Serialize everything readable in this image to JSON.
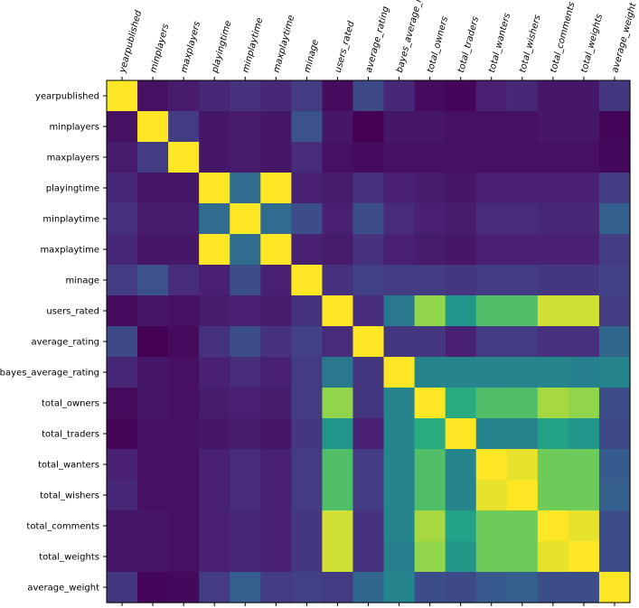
{
  "chart_data": {
    "type": "heatmap",
    "title": "",
    "xlabel": "",
    "ylabel": "",
    "colormap": "viridis",
    "value_range": [
      0,
      1
    ],
    "row_labels": [
      "yearpublished",
      "minplayers",
      "maxplayers",
      "playingtime",
      "minplaytime",
      "maxplaytime",
      "minage",
      "users_rated",
      "average_rating",
      "bayes_average_rating",
      "total_owners",
      "total_traders",
      "total_wanters",
      "total_wishers",
      "total_comments",
      "total_weights",
      "average_weight"
    ],
    "col_labels": [
      "yearpublished",
      "minplayers",
      "maxplayers",
      "playingtime",
      "minplaytime",
      "maxplaytime",
      "minage",
      "users_rated",
      "average_rating",
      "bayes_average_rating",
      "total_owners",
      "total_traders",
      "total_wanters",
      "total_wishers",
      "total_comments",
      "total_weights",
      "average_weight"
    ],
    "values": [
      [
        1.0,
        0.06,
        0.1,
        0.14,
        0.18,
        0.14,
        0.22,
        0.04,
        0.28,
        0.14,
        0.04,
        0.02,
        0.12,
        0.14,
        0.08,
        0.08,
        0.2
      ],
      [
        0.06,
        1.0,
        0.22,
        0.08,
        0.1,
        0.08,
        0.32,
        0.08,
        0.0,
        0.08,
        0.08,
        0.06,
        0.06,
        0.06,
        0.08,
        0.08,
        0.02
      ],
      [
        0.1,
        0.22,
        1.0,
        0.08,
        0.1,
        0.08,
        0.16,
        0.06,
        0.04,
        0.06,
        0.06,
        0.06,
        0.06,
        0.06,
        0.06,
        0.06,
        0.03
      ],
      [
        0.14,
        0.08,
        0.08,
        1.0,
        0.44,
        1.0,
        0.12,
        0.1,
        0.18,
        0.12,
        0.1,
        0.08,
        0.12,
        0.12,
        0.12,
        0.12,
        0.22
      ],
      [
        0.18,
        0.1,
        0.1,
        0.44,
        1.0,
        0.44,
        0.3,
        0.12,
        0.3,
        0.16,
        0.12,
        0.1,
        0.16,
        0.16,
        0.14,
        0.14,
        0.38
      ],
      [
        0.14,
        0.08,
        0.08,
        1.0,
        0.44,
        1.0,
        0.12,
        0.1,
        0.18,
        0.12,
        0.1,
        0.08,
        0.12,
        0.12,
        0.12,
        0.12,
        0.22
      ],
      [
        0.22,
        0.32,
        0.16,
        0.12,
        0.3,
        0.12,
        1.0,
        0.18,
        0.24,
        0.22,
        0.22,
        0.2,
        0.22,
        0.22,
        0.2,
        0.2,
        0.24
      ],
      [
        0.04,
        0.08,
        0.06,
        0.1,
        0.12,
        0.1,
        0.18,
        1.0,
        0.16,
        0.5,
        0.9,
        0.66,
        0.82,
        0.82,
        0.96,
        0.96,
        0.22
      ],
      [
        0.28,
        0.0,
        0.04,
        0.18,
        0.3,
        0.18,
        0.24,
        0.16,
        1.0,
        0.2,
        0.2,
        0.12,
        0.22,
        0.22,
        0.18,
        0.18,
        0.42
      ],
      [
        0.14,
        0.08,
        0.06,
        0.12,
        0.16,
        0.12,
        0.22,
        0.5,
        0.2,
        1.0,
        0.56,
        0.56,
        0.56,
        0.56,
        0.56,
        0.54,
        0.56
      ],
      [
        0.04,
        0.08,
        0.06,
        0.1,
        0.12,
        0.1,
        0.22,
        0.9,
        0.2,
        0.56,
        1.0,
        0.76,
        0.82,
        0.82,
        0.92,
        0.9,
        0.3
      ],
      [
        0.02,
        0.06,
        0.06,
        0.08,
        0.1,
        0.08,
        0.2,
        0.66,
        0.12,
        0.56,
        0.76,
        1.0,
        0.56,
        0.56,
        0.72,
        0.66,
        0.28
      ],
      [
        0.12,
        0.06,
        0.06,
        0.12,
        0.16,
        0.12,
        0.22,
        0.82,
        0.22,
        0.56,
        0.82,
        0.56,
        1.0,
        0.98,
        0.86,
        0.86,
        0.36
      ],
      [
        0.14,
        0.06,
        0.06,
        0.12,
        0.16,
        0.12,
        0.22,
        0.82,
        0.22,
        0.56,
        0.82,
        0.56,
        0.98,
        1.0,
        0.86,
        0.86,
        0.38
      ],
      [
        0.08,
        0.08,
        0.06,
        0.12,
        0.14,
        0.12,
        0.2,
        0.96,
        0.18,
        0.56,
        0.92,
        0.72,
        0.86,
        0.86,
        1.0,
        0.98,
        0.3
      ],
      [
        0.08,
        0.08,
        0.06,
        0.12,
        0.14,
        0.12,
        0.2,
        0.96,
        0.18,
        0.54,
        0.9,
        0.66,
        0.86,
        0.86,
        0.98,
        1.0,
        0.3
      ],
      [
        0.2,
        0.02,
        0.03,
        0.22,
        0.38,
        0.22,
        0.24,
        0.22,
        0.42,
        0.56,
        0.3,
        0.28,
        0.36,
        0.38,
        0.3,
        0.3,
        1.0
      ]
    ],
    "grid": false,
    "legend": "none"
  }
}
